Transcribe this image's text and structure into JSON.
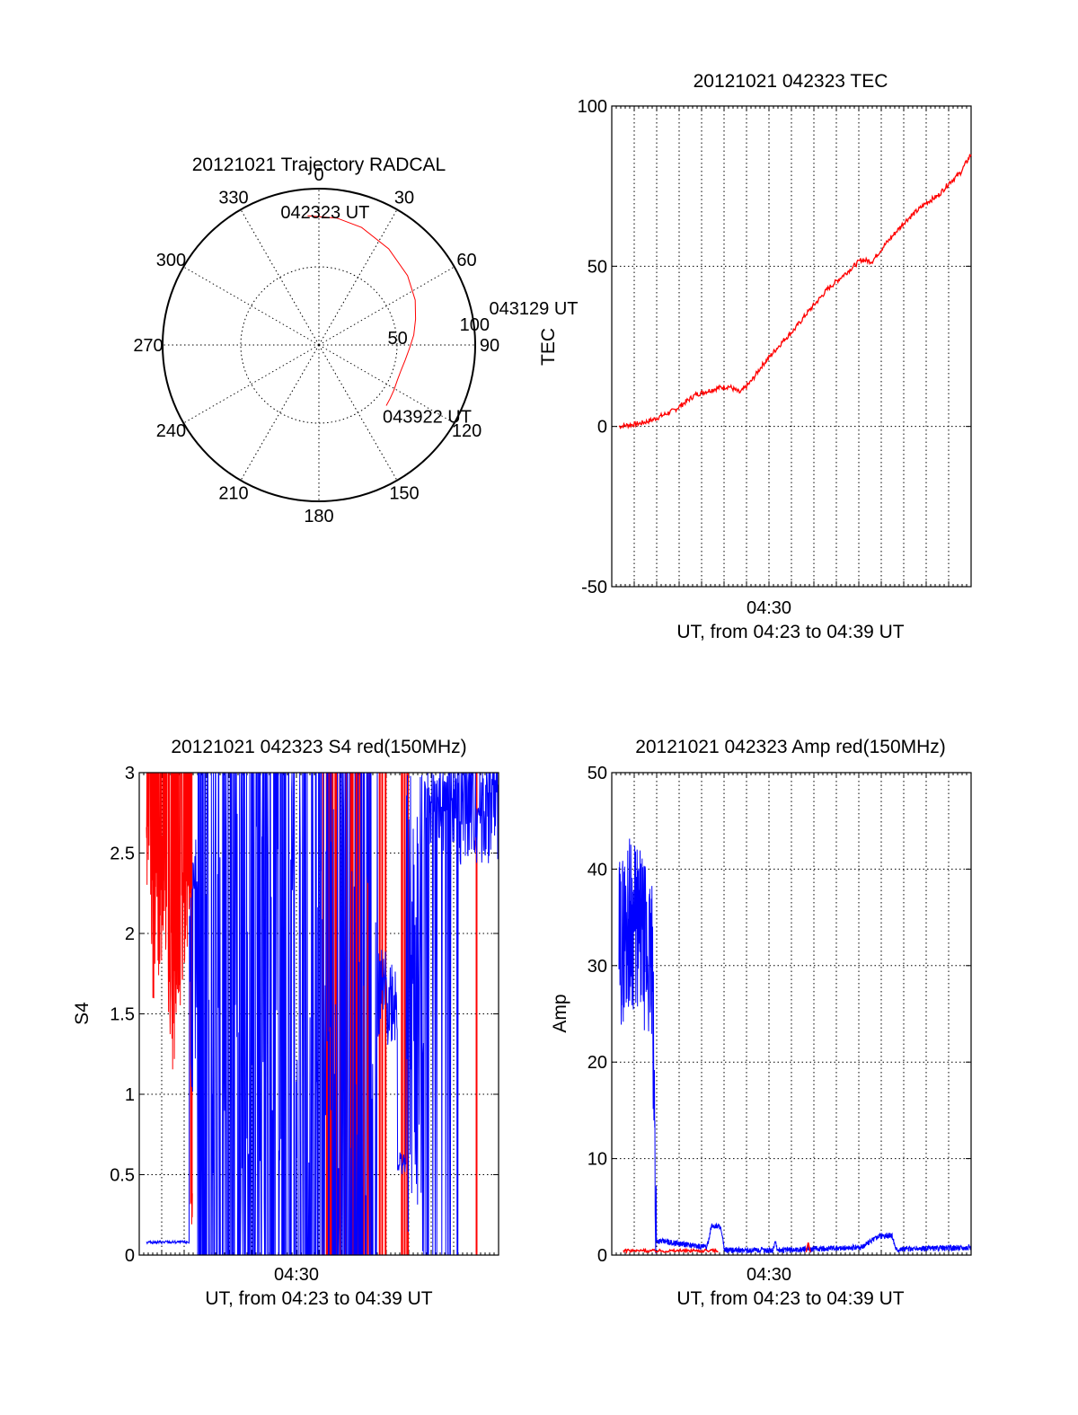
{
  "colors": {
    "red": "#ff0000",
    "blue": "#0000ff",
    "axis": "#000000"
  },
  "chart_data": [
    {
      "type": "polar",
      "title": "20121021 Trajectory RADCAL",
      "angle_labels": [
        "0",
        "30",
        "60",
        "90",
        "120",
        "150",
        "180",
        "210",
        "240",
        "270",
        "300",
        "330"
      ],
      "radial_labels": [
        "50",
        "100"
      ],
      "radial_range": [
        0,
        100
      ],
      "track": {
        "az": [
          -5,
          8,
          20,
          36,
          52,
          65,
          75,
          84,
          92,
          100,
          107,
          114,
          121,
          127,
          132
        ],
        "r": [
          83,
          82,
          80,
          76,
          72,
          68,
          64,
          61,
          58,
          56,
          55,
          55,
          56,
          57,
          58
        ]
      },
      "labels": [
        {
          "text": "042323 UT",
          "az": -5,
          "r": 83
        },
        {
          "text": "043129 UT",
          "az": 84,
          "r": 61
        },
        {
          "text": "043922 UT",
          "az": 132,
          "r": 58
        }
      ]
    },
    {
      "type": "line",
      "title": "20121021 042323 TEC",
      "ylabel": "TEC",
      "xlabel": "UT, from 04:23 to 04:39 UT",
      "x_tick": "04:30",
      "y_ticks": [
        "-50",
        "0",
        "50",
        "100"
      ],
      "ylim": [
        -50,
        100
      ],
      "series": [
        {
          "color": "red",
          "x": [
            0,
            1,
            1.5,
            2,
            2.5,
            3,
            3.5,
            4,
            4.5,
            5,
            5.5,
            6,
            6.5,
            7,
            7.5,
            8,
            8.5,
            9,
            9.5,
            10,
            10.5,
            11,
            11.5,
            12,
            12.5,
            13,
            13.5,
            14,
            14.5,
            15,
            15.5,
            16
          ],
          "y": [
            0,
            1,
            2,
            3.5,
            5,
            7.5,
            10,
            11,
            12,
            12.5,
            10.5,
            14,
            19,
            23,
            27,
            30.5,
            35,
            39,
            43,
            46,
            49,
            52,
            51.5,
            56,
            60,
            64,
            67,
            70,
            72,
            76,
            79,
            85
          ]
        }
      ]
    },
    {
      "type": "line",
      "title": "20121021 042323 S4 red(150MHz)",
      "ylabel": "S4",
      "xlabel": "UT, from 04:23 to 04:39 UT",
      "x_tick": "04:30",
      "y_ticks": [
        "0",
        "0.5",
        "1",
        "1.5",
        "2",
        "2.5",
        "3"
      ],
      "ylim": [
        0,
        3
      ],
      "series": [
        {
          "color": "red",
          "profile": [
            [
              0,
              2.6
            ],
            [
              0.2,
              1.9
            ],
            [
              0.8,
              2.3
            ],
            [
              1.2,
              1.5
            ],
            [
              1.6,
              2.0
            ],
            [
              2.0,
              2.4
            ]
          ]
        },
        {
          "color": "blue",
          "profile": [
            [
              0,
              0.08
            ],
            [
              0.4,
              0.07
            ],
            [
              1.8,
              0.09
            ],
            [
              2.0,
              1.0
            ],
            [
              2.1,
              1.5
            ],
            [
              4.2,
              0.3
            ],
            [
              4.6,
              0.35
            ],
            [
              11.0,
              1.3
            ],
            [
              11.8,
              0.6
            ],
            [
              12.0,
              0.5
            ],
            [
              12.4,
              0.6
            ]
          ]
        }
      ]
    },
    {
      "type": "line",
      "title": "20121021 042323 Amp red(150MHz)",
      "ylabel": "Amp",
      "xlabel": "UT, from 04:23 to 04:39 UT",
      "x_tick": "04:30",
      "y_ticks": [
        "0",
        "10",
        "20",
        "30",
        "40",
        "50"
      ],
      "ylim": [
        0,
        50
      ],
      "series": [
        {
          "color": "blue",
          "profile": [
            [
              0,
              32
            ],
            [
              0.5,
              35
            ],
            [
              1.0,
              33
            ],
            [
              1.5,
              30
            ],
            [
              1.7,
              1.5
            ],
            [
              4.0,
              0.8
            ],
            [
              4.2,
              3.0
            ],
            [
              4.6,
              3.0
            ],
            [
              4.8,
              0.5
            ],
            [
              7.0,
              0.5
            ],
            [
              7.1,
              1.5
            ],
            [
              7.2,
              0.5
            ],
            [
              11.0,
              0.8
            ],
            [
              11.8,
              2.0
            ],
            [
              12.4,
              2.0
            ],
            [
              12.6,
              0.6
            ],
            [
              16,
              0.8
            ]
          ]
        },
        {
          "color": "red",
          "profile": [
            [
              0,
              0.3
            ],
            [
              4.5,
              0.3
            ]
          ]
        }
      ]
    }
  ]
}
